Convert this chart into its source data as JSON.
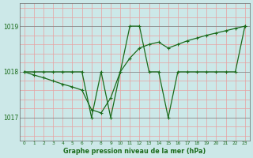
{
  "x": [
    0,
    1,
    2,
    3,
    4,
    5,
    6,
    7,
    8,
    9,
    10,
    11,
    12,
    13,
    14,
    15,
    16,
    17,
    18,
    19,
    20,
    21,
    22,
    23
  ],
  "line1": [
    1018.0,
    1018.0,
    1018.0,
    1018.0,
    1018.0,
    1018.0,
    1018.0,
    1017.0,
    1018.0,
    1017.0,
    1018.0,
    1019.0,
    1019.0,
    1018.0,
    1018.0,
    1017.0,
    1018.0,
    1018.0,
    1018.0,
    1018.0,
    1018.0,
    1018.0,
    1018.0,
    1019.0
  ],
  "line2": [
    1018.0,
    1017.93,
    1017.87,
    1017.8,
    1017.73,
    1017.67,
    1017.6,
    1017.17,
    1017.1,
    1017.43,
    1018.0,
    1018.3,
    1018.52,
    1018.6,
    1018.65,
    1018.52,
    1018.6,
    1018.68,
    1018.74,
    1018.8,
    1018.85,
    1018.9,
    1018.95,
    1019.0
  ],
  "line_color": "#1a6b1a",
  "bg_color": "#cce8e8",
  "grid_major_color": "#888888",
  "grid_minor_color": "#e8a0a0",
  "xlabel": "Graphe pression niveau de la mer (hPa)",
  "yticks": [
    1017,
    1018,
    1019
  ],
  "xticks": [
    0,
    1,
    2,
    3,
    4,
    5,
    6,
    7,
    8,
    9,
    10,
    11,
    12,
    13,
    14,
    15,
    16,
    17,
    18,
    19,
    20,
    21,
    22,
    23
  ],
  "ylim": [
    1016.5,
    1019.5
  ],
  "xlim": [
    -0.5,
    23.5
  ]
}
